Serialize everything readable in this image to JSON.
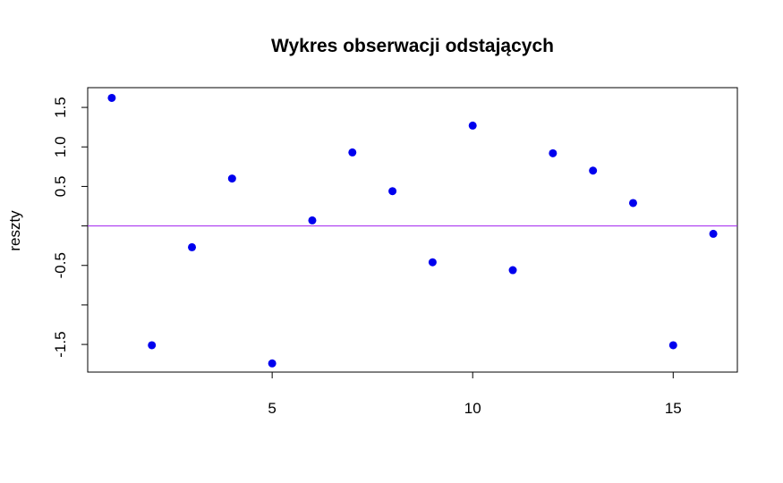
{
  "chart_data": {
    "type": "scatter",
    "title": "Wykres obserwacji odstających",
    "xlabel": "",
    "ylabel": "reszty",
    "xlim": [
      0.4,
      16.6
    ],
    "ylim": [
      -1.85,
      1.75
    ],
    "x_ticks": [
      5,
      10,
      15
    ],
    "y_ticks": [
      1.5,
      1.0,
      0.5,
      -0.5,
      -1.5
    ],
    "y_tick_labels": [
      "1.5",
      "1.0",
      "0.5",
      "-0.5",
      "-1.5"
    ],
    "y_minor_ticks": [
      0,
      -1
    ],
    "hline": 0,
    "hline_color": "#a020f0",
    "point_color": "#0000ee",
    "grid": false,
    "legend": "none",
    "x": [
      1,
      2,
      3,
      4,
      5,
      6,
      7,
      8,
      9,
      10,
      11,
      12,
      13,
      14,
      15,
      16
    ],
    "y": [
      1.62,
      -1.51,
      -0.27,
      0.6,
      -1.74,
      0.07,
      0.93,
      0.44,
      -0.46,
      1.27,
      -0.56,
      0.92,
      0.7,
      0.29,
      -1.51,
      -0.1
    ]
  }
}
